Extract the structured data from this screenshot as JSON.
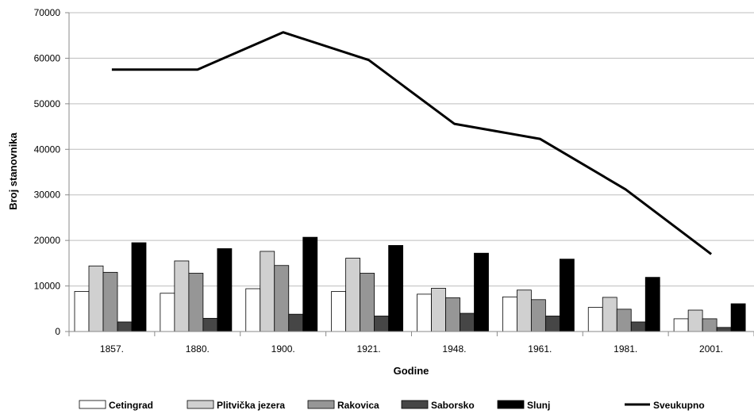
{
  "chart_data": {
    "type": "bar",
    "categories": [
      "1857.",
      "1880.",
      "1900.",
      "1921.",
      "1948.",
      "1961.",
      "1981.",
      "2001."
    ],
    "series": [
      {
        "name": "Cetingrad",
        "type": "bar",
        "color": "#ffffff",
        "values": [
          8800,
          8400,
          9400,
          8800,
          8200,
          7600,
          5300,
          2800
        ]
      },
      {
        "name": "Plitvička jezera",
        "type": "bar",
        "color": "#d0d0d0",
        "values": [
          14400,
          15500,
          17600,
          16100,
          9500,
          9100,
          7500,
          4700
        ]
      },
      {
        "name": "Rakovica",
        "type": "bar",
        "color": "#969696",
        "values": [
          13000,
          12800,
          14500,
          12800,
          7400,
          7000,
          4900,
          2800
        ]
      },
      {
        "name": "Saborsko",
        "type": "bar",
        "color": "#464646",
        "values": [
          2100,
          2900,
          3800,
          3400,
          4000,
          3400,
          2100,
          900
        ]
      },
      {
        "name": "Slunj",
        "type": "bar",
        "color": "#000000",
        "values": [
          19500,
          18200,
          20700,
          18900,
          17200,
          15900,
          11900,
          6100
        ]
      },
      {
        "name": "Sveukupno",
        "type": "line",
        "color": "#000000",
        "values": [
          57500,
          57500,
          65700,
          59600,
          45600,
          42300,
          31200,
          17000
        ]
      }
    ],
    "xlabel": "Godine",
    "ylabel": "Broj stanovnika",
    "ylim": [
      0,
      70000
    ],
    "yticks": [
      "0",
      "10000",
      "20000",
      "30000",
      "40000",
      "50000",
      "60000",
      "70000"
    ],
    "grid": true,
    "legend_position": "bottom"
  }
}
